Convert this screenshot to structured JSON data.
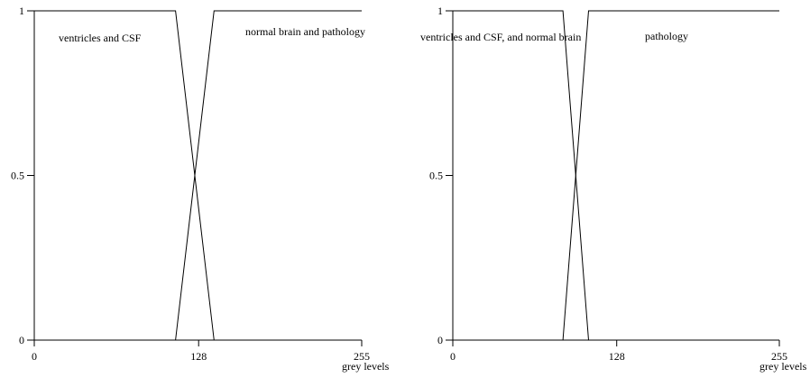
{
  "chart_data": [
    {
      "type": "line",
      "title": "",
      "xlabel": "grey levels",
      "ylabel": "",
      "xlim": [
        0,
        255
      ],
      "ylim": [
        0,
        1
      ],
      "x_ticks": [
        "0",
        "128",
        "255"
      ],
      "y_ticks": [
        "0",
        "0.5",
        "1"
      ],
      "grid": false,
      "series": [
        {
          "name": "ventricles and CSF",
          "x": [
            0,
            0,
            110,
            140
          ],
          "y": [
            0,
            1,
            1,
            0
          ]
        },
        {
          "name": "normal brain and pathology",
          "x": [
            110,
            140,
            255
          ],
          "y": [
            0,
            1,
            1
          ]
        }
      ]
    },
    {
      "type": "line",
      "title": "",
      "xlabel": "grey levels",
      "ylabel": "",
      "xlim": [
        0,
        255
      ],
      "ylim": [
        0,
        1
      ],
      "x_ticks": [
        "0",
        "128",
        "255"
      ],
      "y_ticks": [
        "0",
        "0.5",
        "1"
      ],
      "grid": false,
      "series": [
        {
          "name": "ventricles and CSF, and normal brain",
          "x": [
            0,
            0,
            86,
            106
          ],
          "y": [
            0,
            1,
            1,
            0
          ]
        },
        {
          "name": "pathology",
          "x": [
            86,
            106,
            255
          ],
          "y": [
            0,
            1,
            1
          ]
        }
      ]
    }
  ]
}
